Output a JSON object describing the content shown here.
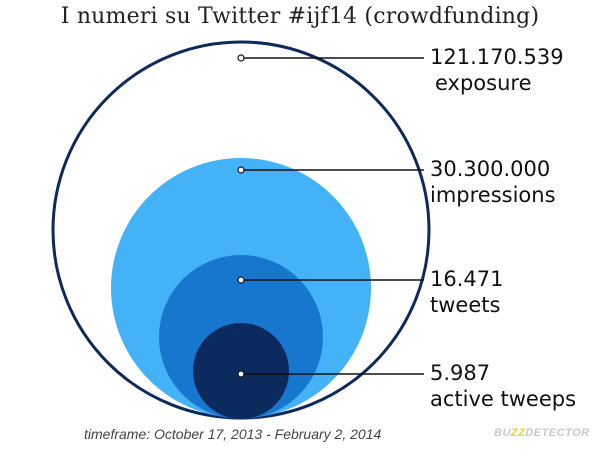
{
  "title": "I numeri su Twitter #ijf14 (crowdfunding)",
  "metrics": [
    {
      "value": "121.170.539",
      "label": "exposure"
    },
    {
      "value": "30.300.000",
      "label": "impressions"
    },
    {
      "value": "16.471",
      "label": "tweets"
    },
    {
      "value": "5.987",
      "label": "active tweeps"
    }
  ],
  "colors": {
    "exposure_outline": "#0d2a5c",
    "impressions": "#43b2f6",
    "tweets": "#1777cf",
    "active_tweeps": "#0b2a5e"
  },
  "footer": "timeframe: October 17, 2013 - February 2, 2014",
  "logo": {
    "prefix": "BU",
    "highlight": "ZZ",
    "suffix": "DETECTOR"
  }
}
